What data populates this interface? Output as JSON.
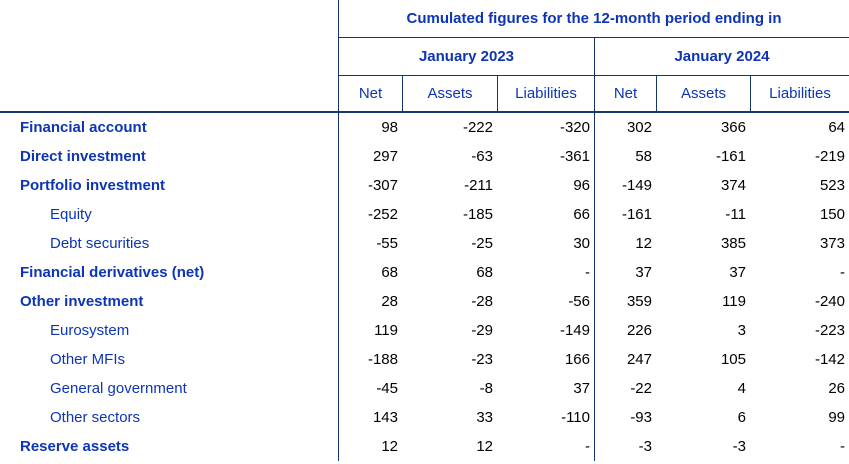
{
  "header": {
    "title": "Cumulated figures for the 12-month period ending in",
    "periods": [
      {
        "label": "January 2023"
      },
      {
        "label": "January 2024"
      }
    ],
    "column_labels": {
      "net": "Net",
      "assets": "Assets",
      "liabilities": "Liabilities"
    }
  },
  "rows": [
    {
      "label": "Financial account",
      "bold": true,
      "values": [
        "98",
        "-222",
        "-320",
        "302",
        "366",
        "64"
      ]
    },
    {
      "label": "Direct investment",
      "bold": true,
      "values": [
        "297",
        "-63",
        "-361",
        "58",
        "-161",
        "-219"
      ]
    },
    {
      "label": "Portfolio investment",
      "bold": true,
      "values": [
        "-307",
        "-211",
        "96",
        "-149",
        "374",
        "523"
      ]
    },
    {
      "label": "Equity",
      "bold": false,
      "values": [
        "-252",
        "-185",
        "66",
        "-161",
        "-11",
        "150"
      ]
    },
    {
      "label": "Debt securities",
      "bold": false,
      "values": [
        "-55",
        "-25",
        "30",
        "12",
        "385",
        "373"
      ]
    },
    {
      "label": "Financial derivatives (net)",
      "bold": true,
      "values": [
        "68",
        "68",
        "-",
        "37",
        "37",
        "-"
      ]
    },
    {
      "label": "Other investment",
      "bold": true,
      "values": [
        "28",
        "-28",
        "-56",
        "359",
        "119",
        "-240"
      ]
    },
    {
      "label": "Eurosystem",
      "bold": false,
      "values": [
        "119",
        "-29",
        "-149",
        "226",
        "3",
        "-223"
      ]
    },
    {
      "label": "Other MFIs",
      "bold": false,
      "values": [
        "-188",
        "-23",
        "166",
        "247",
        "105",
        "-142"
      ]
    },
    {
      "label": "General government",
      "bold": false,
      "values": [
        "-45",
        "-8",
        "37",
        "-22",
        "4",
        "26"
      ]
    },
    {
      "label": "Other sectors",
      "bold": false,
      "values": [
        "143",
        "33",
        "-110",
        "-93",
        "6",
        "99"
      ]
    },
    {
      "label": "Reserve assets",
      "bold": true,
      "values": [
        "12",
        "12",
        "-",
        "-3",
        "-3",
        "-"
      ]
    }
  ],
  "colors": {
    "label_blue": "#0d35b5",
    "line_navy": "#17366e",
    "number_black": "#000000"
  }
}
